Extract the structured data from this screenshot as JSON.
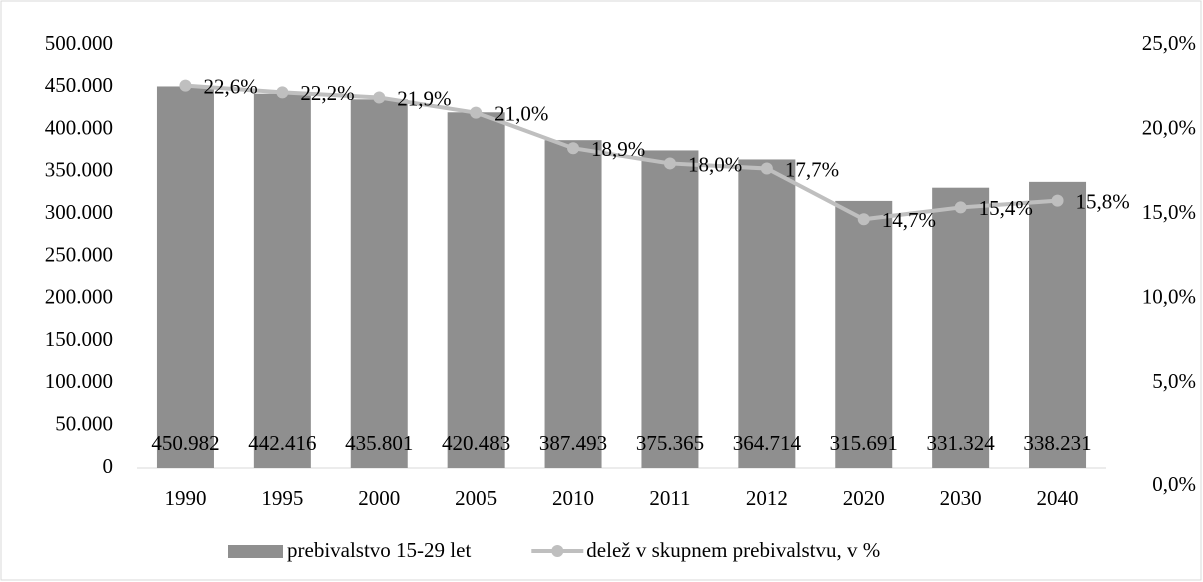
{
  "chart_data": {
    "type": "bar",
    "categories": [
      "1990",
      "1995",
      "2000",
      "2005",
      "2010",
      "2011",
      "2012",
      "2020",
      "2030",
      "2040"
    ],
    "series": [
      {
        "name": "prebivalstvo 15-29 let",
        "type": "bar",
        "color": "#8f8f8f",
        "values": [
          450982,
          442416,
          435801,
          420483,
          387493,
          375365,
          364714,
          315691,
          331324,
          338231
        ],
        "value_labels": [
          "450.982",
          "442.416",
          "435.801",
          "420.483",
          "387.493",
          "375.365",
          "364.714",
          "315.691",
          "331.324",
          "338.231"
        ]
      },
      {
        "name": "delež v skupnem prebivalstvu, v %",
        "type": "line",
        "axis": "y2",
        "color": "#bfbfbf",
        "values": [
          22.6,
          22.2,
          21.9,
          21.0,
          18.9,
          18.0,
          17.7,
          14.7,
          15.4,
          15.8
        ],
        "value_labels": [
          "22,6%",
          "22,2%",
          "21,9%",
          "21,0%",
          "18,9%",
          "18,0%",
          "17,7%",
          "14,7%",
          "15,4%",
          "15,8%"
        ]
      }
    ],
    "ylim": [
      0,
      500000
    ],
    "yticks": [
      0,
      {
        "value": 50000,
        "label": "50.000"
      },
      {
        "value": 100000,
        "label": "100.000"
      },
      {
        "value": 150000,
        "label": "150.000"
      },
      {
        "value": 200000,
        "label": "200.000"
      },
      {
        "value": 250000,
        "label": "250.000"
      },
      {
        "value": 300000,
        "label": "300.000"
      },
      {
        "value": 350000,
        "label": "350.000"
      },
      {
        "value": 400000,
        "label": "400.000"
      },
      {
        "value": 450000,
        "label": "450.000"
      },
      {
        "value": 500000,
        "label": "500.000"
      }
    ],
    "y2lim": [
      0,
      25
    ],
    "y2ticks": [
      {
        "value": 0,
        "label": "0,0%"
      },
      {
        "value": 5,
        "label": "5,0%"
      },
      {
        "value": 10,
        "label": "10,0%"
      },
      {
        "value": 15,
        "label": "15,0%"
      },
      {
        "value": 20,
        "label": "20,0%"
      },
      {
        "value": 25,
        "label": "25,0%"
      }
    ],
    "legend": "bottom"
  }
}
